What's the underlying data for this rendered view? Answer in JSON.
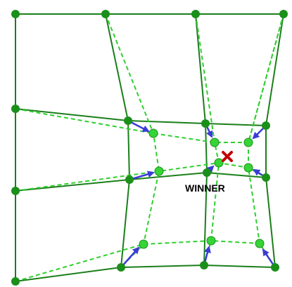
{
  "labels": {
    "winner": "WINNER"
  },
  "colors": {
    "grid_line": "#1a7f1a",
    "grid_node": "#1a8f1a",
    "inner_line": "#2fcf2f",
    "inner_node": "#37d437",
    "arrow": "#3b3bd6",
    "winner_marker": "#c00000"
  },
  "icons": {
    "winner_marker": "x-mark-icon"
  }
}
